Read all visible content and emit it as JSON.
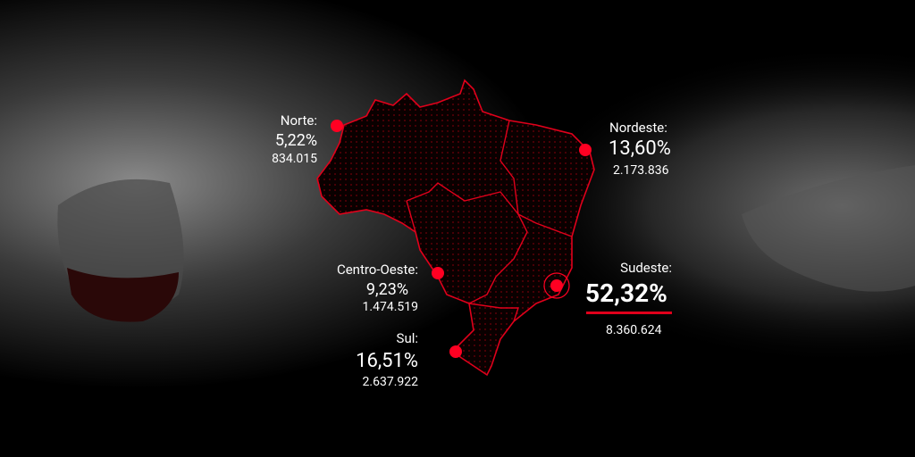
{
  "regions": [
    {
      "name": "Norte:",
      "percent": "5,22%",
      "count": "834.015"
    },
    {
      "name": "Nordeste:",
      "percent": "13,60%",
      "count": "2.173.836"
    },
    {
      "name": "Centro-Oeste:",
      "percent": "9,23%",
      "count": "1.474.519"
    },
    {
      "name": "Sul:",
      "percent": "16,51%",
      "count": "2.637.922"
    },
    {
      "name": "Sudeste:",
      "percent": "52,32%",
      "count": "8.360.624"
    }
  ]
}
